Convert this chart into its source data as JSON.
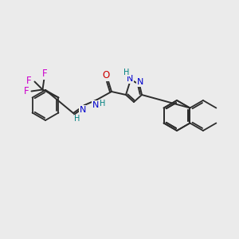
{
  "background_color": "#ebebeb",
  "bond_color": "#2d2d2d",
  "nitrogen_color": "#0000cc",
  "oxygen_color": "#cc0000",
  "fluorine_color": "#cc00cc",
  "teal_color": "#008080",
  "figsize": [
    3.0,
    3.0
  ],
  "dpi": 100,
  "xlim": [
    0,
    300
  ],
  "ylim": [
    0,
    300
  ]
}
